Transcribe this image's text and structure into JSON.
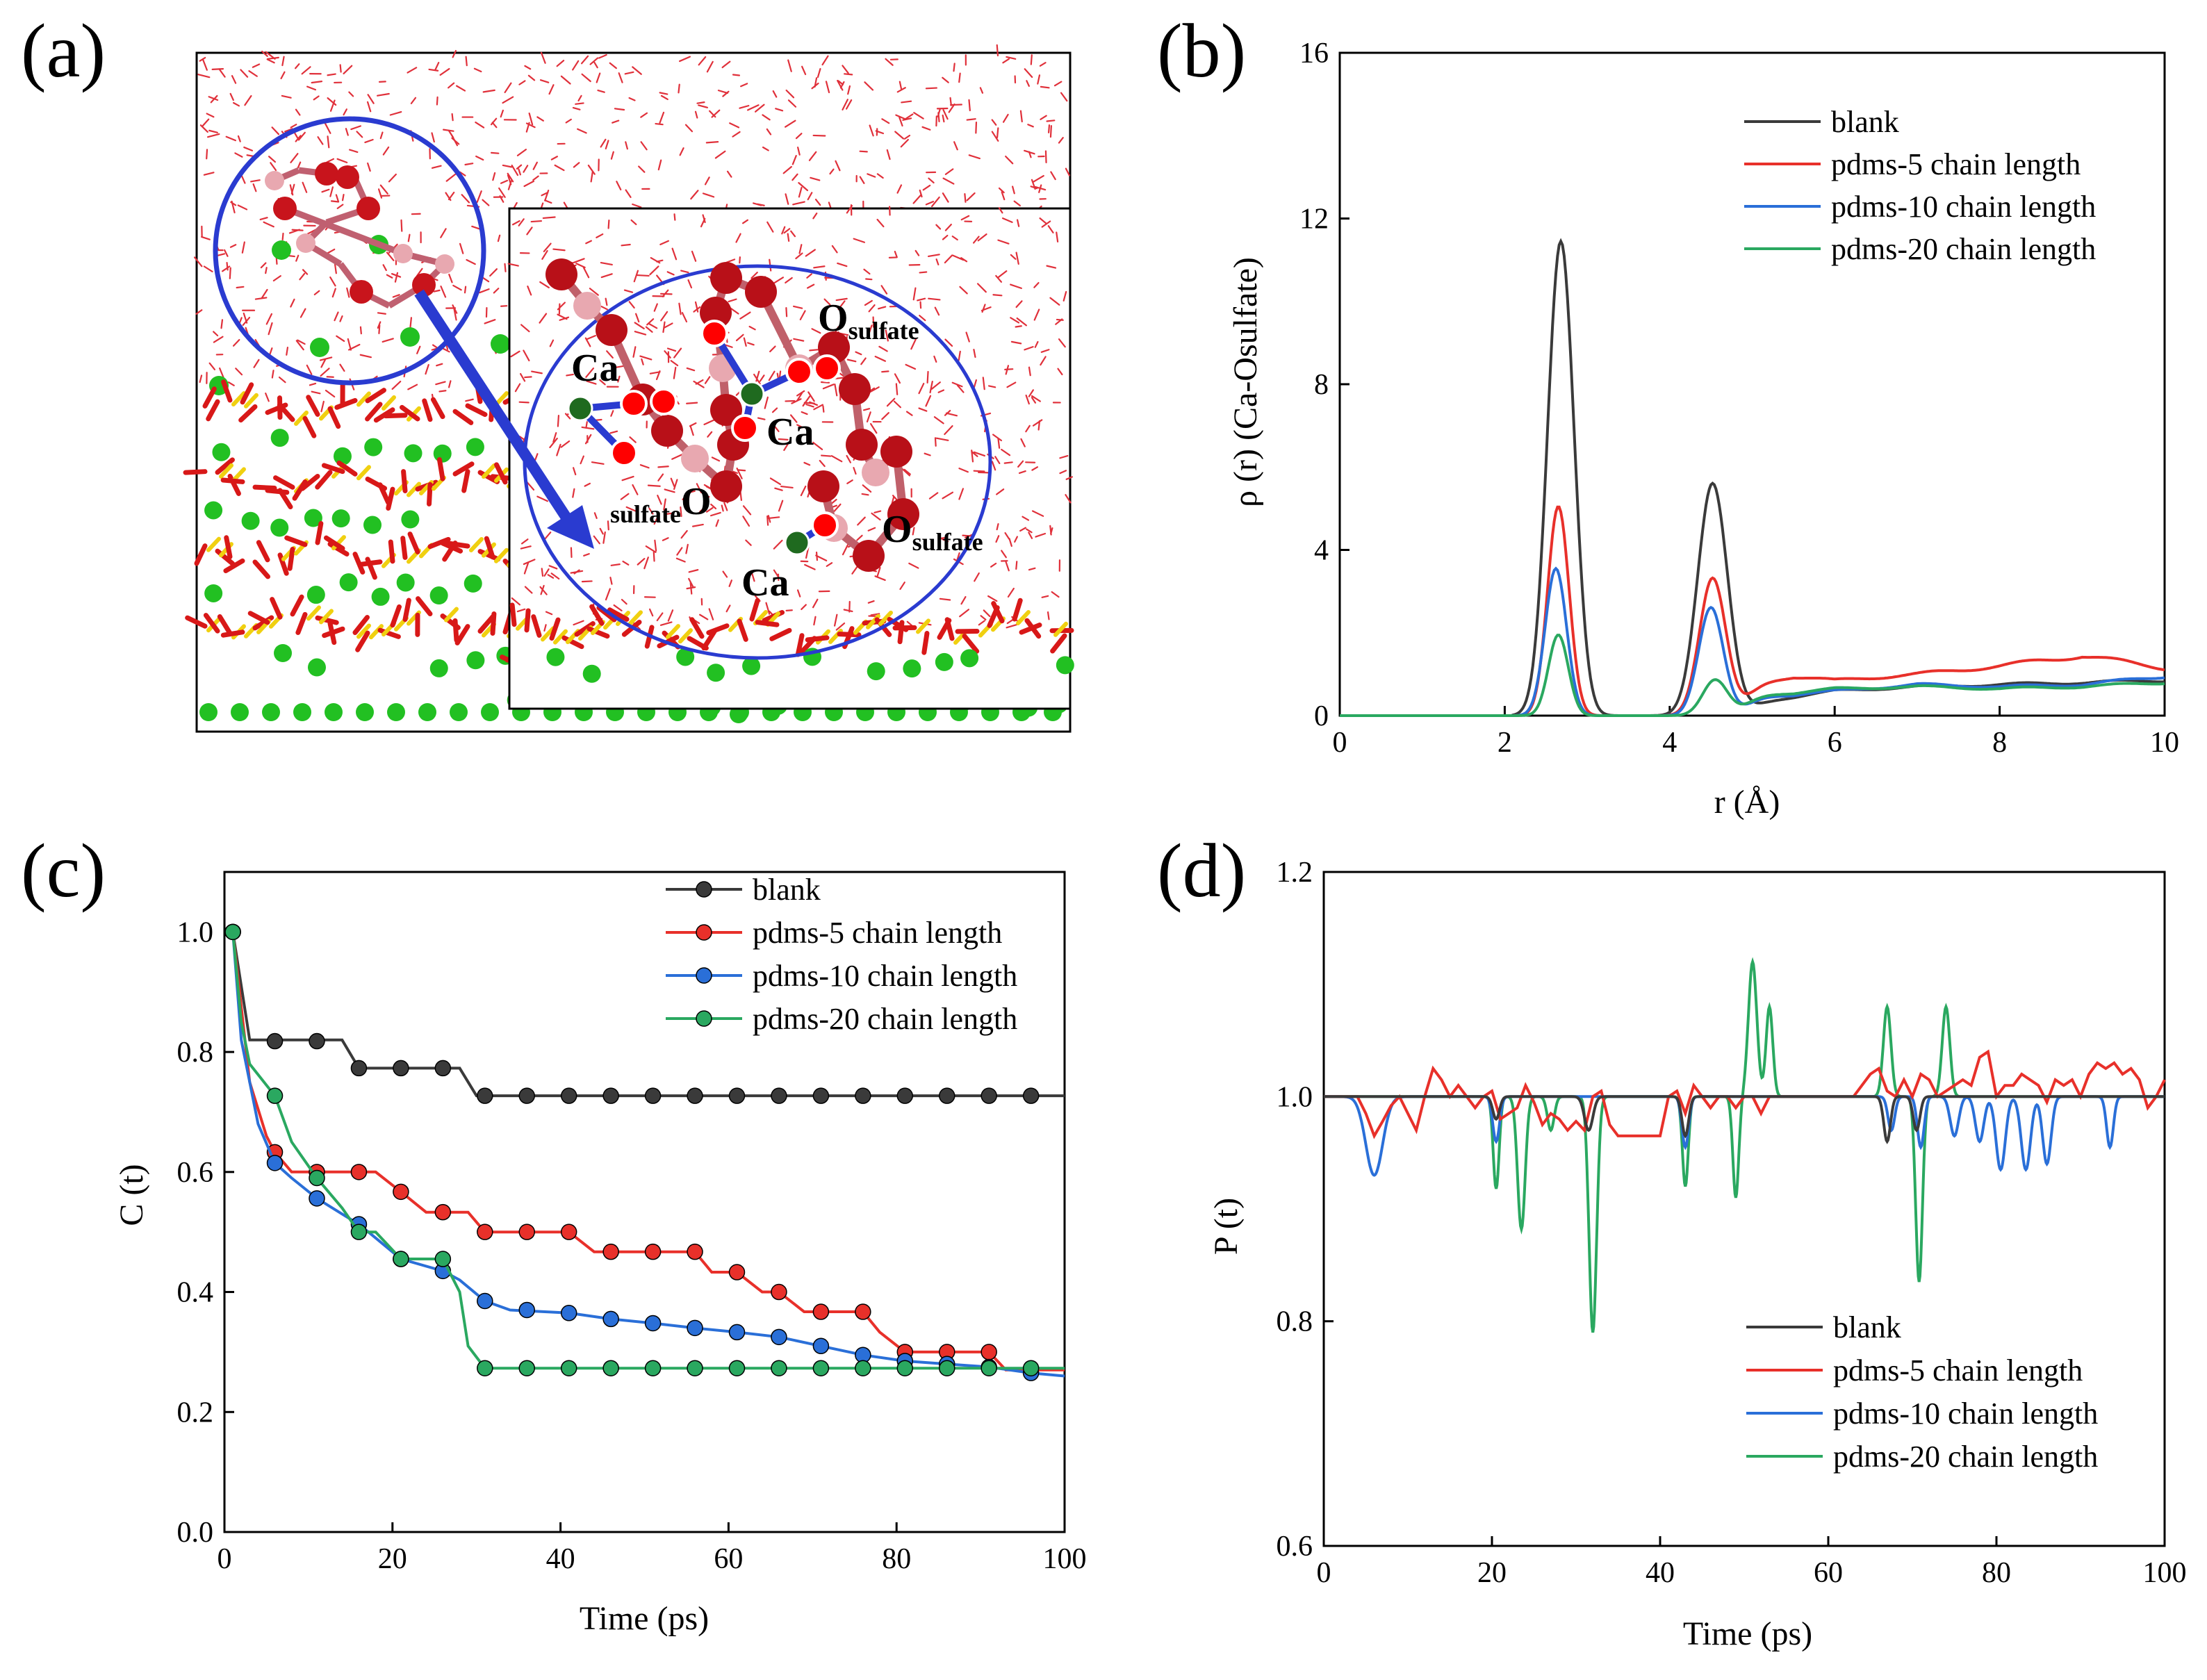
{
  "colors": {
    "blank": "#3a3a3a",
    "pdms5": "#e8302a",
    "pdms10": "#2a6fd8",
    "pdms20": "#2aa860",
    "water": "#e0303a",
    "calcium": "#22c022",
    "sulfur": "#f0d010",
    "circle": "#2a3bd0"
  },
  "panel_a": {
    "label": "(a)",
    "atom_labels": [
      {
        "id": "ca1",
        "text": "Ca"
      },
      {
        "id": "ca2",
        "text": "Ca"
      },
      {
        "id": "ca3",
        "text": "Ca"
      }
    ],
    "o_labels": [
      {
        "id": "o1",
        "main": "O",
        "sub": "sulfate",
        "sub_position": "after"
      },
      {
        "id": "o2",
        "main": "O",
        "sub": "sulfate",
        "sub_position": "before"
      },
      {
        "id": "o3",
        "main": "O",
        "sub": "sulfate",
        "sub_position": "after"
      }
    ]
  },
  "chart_data": [
    {
      "id": "b",
      "panel_label": "(b)",
      "type": "line",
      "xlabel": "r (Å)",
      "ylabel": "ρ (r) (Ca-Osulfate)",
      "xlim": [
        0,
        10
      ],
      "ylim": [
        0,
        16
      ],
      "xticks": [
        0,
        2,
        4,
        6,
        8,
        10
      ],
      "yticks": [
        0,
        4,
        8,
        12,
        16
      ],
      "legend_position": "top-right",
      "series": [
        {
          "name": "blank",
          "color_key": "blank",
          "peaks": [
            [
              2.68,
              11.45,
              0.16
            ],
            [
              4.52,
              5.6,
              0.18
            ]
          ],
          "tail": [
            [
              4.9,
              0.3
            ],
            [
              5.5,
              0.45
            ],
            [
              6,
              0.6
            ],
            [
              7,
              0.7
            ],
            [
              8,
              0.75
            ],
            [
              9,
              0.8
            ],
            [
              10,
              0.85
            ]
          ]
        },
        {
          "name": "pdms-5 chain length",
          "color_key": "pdms5",
          "peaks": [
            [
              2.65,
              5.05,
              0.13
            ],
            [
              4.52,
              3.3,
              0.16
            ]
          ],
          "tail": [
            [
              4.9,
              0.85
            ],
            [
              5.5,
              0.95
            ],
            [
              6,
              0.85
            ],
            [
              7,
              1.0
            ],
            [
              8,
              1.2
            ],
            [
              9,
              1.45
            ],
            [
              10,
              1.15
            ]
          ]
        },
        {
          "name": "pdms-10 chain length",
          "color_key": "pdms10",
          "peaks": [
            [
              2.62,
              3.55,
              0.13
            ],
            [
              4.5,
              2.6,
              0.15
            ]
          ],
          "tail": [
            [
              4.9,
              0.5
            ],
            [
              5.5,
              0.5
            ],
            [
              6,
              0.6
            ],
            [
              7,
              0.75
            ],
            [
              8,
              0.7
            ],
            [
              9,
              0.75
            ],
            [
              10,
              0.95
            ]
          ]
        },
        {
          "name": "pdms-20 chain length",
          "color_key": "pdms20",
          "peaks": [
            [
              2.65,
              1.95,
              0.12
            ],
            [
              4.55,
              0.85,
              0.15
            ]
          ],
          "tail": [
            [
              4.9,
              0.55
            ],
            [
              5.5,
              0.55
            ],
            [
              6,
              0.65
            ],
            [
              7,
              0.7
            ],
            [
              8,
              0.65
            ],
            [
              9,
              0.7
            ],
            [
              10,
              0.8
            ]
          ]
        }
      ]
    },
    {
      "id": "c",
      "panel_label": "(c)",
      "type": "line",
      "xlabel": "Time (ps)",
      "ylabel": "C (t)",
      "xlim": [
        0,
        100
      ],
      "ylim": [
        0,
        1.1
      ],
      "xticks": [
        0,
        20,
        40,
        60,
        80,
        100
      ],
      "yticks": [
        0.0,
        0.2,
        0.4,
        0.6,
        0.8,
        1.0
      ],
      "legend_position": "top-right",
      "series": [
        {
          "name": "blank",
          "color_key": "blank",
          "x": [
            1,
            3,
            6,
            11,
            14,
            16,
            21,
            26,
            28,
            30,
            31,
            100
          ],
          "y": [
            1.0,
            0.82,
            0.82,
            0.82,
            0.82,
            0.773,
            0.773,
            0.773,
            0.773,
            0.727,
            0.727,
            0.727
          ],
          "markers_x": [
            1,
            6,
            11,
            16,
            21,
            26,
            31,
            36,
            41,
            46,
            51,
            56,
            61,
            66,
            71,
            76,
            81,
            86,
            91,
            96
          ],
          "markers_y": [
            1.0,
            0.818,
            0.818,
            0.773,
            0.773,
            0.773,
            0.727,
            0.727,
            0.727,
            0.727,
            0.727,
            0.727,
            0.727,
            0.727,
            0.727,
            0.727,
            0.727,
            0.727,
            0.727,
            0.727
          ]
        },
        {
          "name": "pdms-5 chain length",
          "color_key": "pdms5",
          "x": [
            1,
            3,
            5,
            6,
            8,
            11,
            16,
            18,
            21,
            24,
            26,
            29,
            31,
            39,
            41,
            44,
            46,
            56,
            58,
            61,
            64,
            66,
            69,
            71,
            76,
            78,
            81,
            91,
            93,
            100
          ],
          "y": [
            1.0,
            0.75,
            0.66,
            0.633,
            0.6,
            0.6,
            0.6,
            0.6,
            0.567,
            0.533,
            0.533,
            0.533,
            0.5,
            0.5,
            0.5,
            0.467,
            0.467,
            0.467,
            0.433,
            0.433,
            0.4,
            0.4,
            0.367,
            0.367,
            0.367,
            0.333,
            0.3,
            0.3,
            0.27,
            0.27
          ],
          "markers_x": [
            1,
            6,
            11,
            16,
            21,
            26,
            31,
            36,
            41,
            46,
            51,
            56,
            61,
            66,
            71,
            76,
            81,
            86,
            91
          ],
          "markers_y": [
            1.0,
            0.633,
            0.6,
            0.6,
            0.567,
            0.533,
            0.5,
            0.5,
            0.5,
            0.467,
            0.467,
            0.467,
            0.433,
            0.4,
            0.367,
            0.367,
            0.3,
            0.3,
            0.3
          ]
        },
        {
          "name": "pdms-10 chain length",
          "color_key": "pdms10",
          "x": [
            1,
            2,
            4,
            6,
            8,
            11,
            14,
            16,
            18,
            21,
            26,
            28,
            31,
            34,
            41,
            46,
            51,
            56,
            61,
            66,
            71,
            76,
            81,
            86,
            91,
            96,
            100
          ],
          "y": [
            1.0,
            0.82,
            0.68,
            0.615,
            0.59,
            0.556,
            0.53,
            0.513,
            0.49,
            0.455,
            0.435,
            0.42,
            0.385,
            0.37,
            0.365,
            0.355,
            0.348,
            0.34,
            0.333,
            0.325,
            0.31,
            0.295,
            0.285,
            0.28,
            0.275,
            0.265,
            0.26
          ],
          "markers_x": [
            1,
            6,
            11,
            16,
            21,
            26,
            31,
            36,
            41,
            46,
            51,
            56,
            61,
            66,
            71,
            76,
            81,
            86,
            91,
            96
          ],
          "markers_y": [
            1.0,
            0.615,
            0.556,
            0.513,
            0.455,
            0.435,
            0.385,
            0.37,
            0.365,
            0.355,
            0.348,
            0.34,
            0.333,
            0.325,
            0.31,
            0.295,
            0.285,
            0.28,
            0.275,
            0.265
          ]
        },
        {
          "name": "pdms-20 chain length",
          "color_key": "pdms20",
          "x": [
            1,
            2,
            3,
            6,
            8,
            11,
            14,
            16,
            18,
            21,
            26,
            28,
            29,
            31,
            100
          ],
          "y": [
            1.0,
            0.85,
            0.78,
            0.727,
            0.65,
            0.59,
            0.54,
            0.5,
            0.5,
            0.455,
            0.455,
            0.4,
            0.31,
            0.273,
            0.273
          ],
          "markers_x": [
            1,
            6,
            11,
            16,
            21,
            26,
            31,
            36,
            41,
            46,
            51,
            56,
            61,
            66,
            71,
            76,
            81,
            86,
            91,
            96
          ],
          "markers_y": [
            1.0,
            0.727,
            0.59,
            0.5,
            0.455,
            0.455,
            0.273,
            0.273,
            0.273,
            0.273,
            0.273,
            0.273,
            0.273,
            0.273,
            0.273,
            0.273,
            0.273,
            0.273,
            0.273,
            0.273
          ]
        }
      ]
    },
    {
      "id": "d",
      "panel_label": "(d)",
      "type": "line",
      "xlabel": "Time (ps)",
      "ylabel": "P (t)",
      "xlim": [
        0,
        100
      ],
      "ylim": [
        0.6,
        1.2
      ],
      "xticks": [
        0,
        20,
        40,
        60,
        80,
        100
      ],
      "yticks": [
        0.6,
        0.8,
        1.0,
        1.2
      ],
      "legend_position": "bottom-right",
      "series": [
        {
          "name": "blank",
          "color_key": "blank",
          "baseline": 1.0,
          "events": [
            [
              20.5,
              -0.02,
              0.4
            ],
            [
              31.5,
              -0.03,
              0.5
            ],
            [
              43,
              -0.035,
              0.4
            ],
            [
              67,
              -0.04,
              0.4
            ],
            [
              70.5,
              -0.03,
              0.4
            ]
          ]
        },
        {
          "name": "pdms-5 chain length",
          "color_key": "pdms5",
          "x": [
            4,
            5,
            6,
            7,
            8,
            9,
            10,
            11,
            12,
            13,
            14,
            15,
            16,
            17,
            18,
            19,
            20,
            21,
            22,
            23,
            24,
            25,
            26,
            27,
            28,
            29,
            30,
            31,
            32,
            33,
            34,
            35,
            36,
            37,
            38,
            39,
            40,
            41,
            42,
            43,
            44,
            45,
            46,
            47,
            48,
            49,
            50,
            51,
            52,
            53,
            54,
            55,
            63,
            64,
            65,
            66,
            67,
            68,
            69,
            70,
            71,
            72,
            73,
            74,
            75,
            76,
            77,
            78,
            79,
            80,
            81,
            82,
            83,
            84,
            85,
            86,
            87,
            88,
            89,
            90,
            91,
            92,
            93,
            94,
            95,
            96,
            97,
            98,
            99,
            100
          ],
          "y": [
            1.0,
            0.985,
            0.965,
            0.978,
            0.992,
            1.0,
            0.985,
            0.97,
            1.0,
            1.025,
            1.015,
            1.0,
            1.01,
            1.0,
            0.99,
            1.0,
            1.005,
            0.98,
            0.985,
            0.99,
            1.01,
            0.995,
            0.975,
            0.985,
            0.98,
            0.97,
            0.978,
            0.97,
            1.0,
            1.005,
            0.975,
            0.965,
            0.965,
            0.965,
            0.965,
            0.965,
            0.965,
            1.0,
            1.005,
            0.985,
            1.01,
            1.0,
            0.99,
            1.0,
            1.0,
            0.99,
            1.0,
            1.0,
            0.985,
            1.0,
            1.0,
            1.0,
            1.0,
            1.01,
            1.02,
            1.025,
            1.005,
            1.0,
            1.015,
            1.0,
            1.02,
            1.015,
            1.0,
            1.005,
            1.01,
            1.015,
            1.01,
            1.035,
            1.04,
            1.0,
            1.01,
            1.01,
            1.02,
            1.015,
            1.01,
            0.995,
            1.015,
            1.01,
            1.015,
            1.0,
            1.02,
            1.03,
            1.025,
            1.03,
            1.02,
            1.025,
            1.015,
            0.99,
            1.0,
            1.015
          ]
        },
        {
          "name": "pdms-10 chain length",
          "color_key": "pdms10",
          "baseline": 1.0,
          "events": [
            [
              6,
              -0.07,
              1.0
            ],
            [
              20.5,
              -0.04,
              0.4
            ],
            [
              43,
              -0.045,
              0.4
            ],
            [
              67.5,
              -0.03,
              0.4
            ],
            [
              71,
              -0.045,
              0.4
            ],
            [
              75,
              -0.035,
              0.5
            ],
            [
              78,
              -0.04,
              0.5
            ],
            [
              80.5,
              -0.065,
              0.55
            ],
            [
              83.5,
              -0.065,
              0.55
            ],
            [
              86,
              -0.06,
              0.5
            ],
            [
              93.5,
              -0.045,
              0.4
            ]
          ]
        },
        {
          "name": "pdms-20 chain length",
          "color_key": "pdms20",
          "baseline": 1.0,
          "events": [
            [
              20.5,
              -0.082,
              0.35
            ],
            [
              23.5,
              -0.118,
              0.45
            ],
            [
              27,
              -0.03,
              0.4
            ],
            [
              32,
              -0.21,
              0.45
            ],
            [
              43,
              -0.08,
              0.35
            ],
            [
              49,
              -0.09,
              0.35
            ],
            [
              51,
              0.12,
              0.5
            ],
            [
              53,
              0.08,
              0.4
            ],
            [
              67,
              0.08,
              0.45
            ],
            [
              70.8,
              -0.165,
              0.4
            ],
            [
              74,
              0.08,
              0.45
            ]
          ]
        }
      ]
    }
  ]
}
